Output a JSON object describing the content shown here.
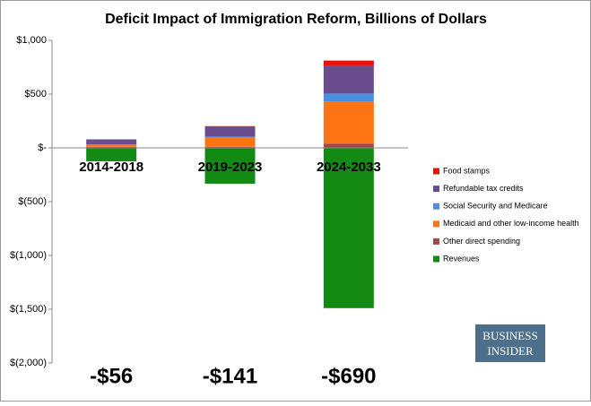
{
  "chart_data": {
    "type": "stacked-bar",
    "title": "Deficit Impact of Immigration Reform, Billions of Dollars",
    "categories": [
      "2014-2018",
      "2019-2023",
      "2024-2033"
    ],
    "series": [
      {
        "name": "Revenues",
        "color": "#138a13",
        "values": [
          -125,
          -333,
          -1490
        ]
      },
      {
        "name": "Other direct spending",
        "color": "#a34848",
        "values": [
          10,
          10,
          40
        ]
      },
      {
        "name": "Medicaid and other low-income health",
        "color": "#ff7412",
        "values": [
          20,
          90,
          390
        ]
      },
      {
        "name": "Social Security and Medicare",
        "color": "#4a8fdc",
        "values": [
          3,
          5,
          75
        ]
      },
      {
        "name": "Refundable tax credits",
        "color": "#6a4d8e",
        "values": [
          45,
          95,
          262
        ]
      },
      {
        "name": "Food stamps",
        "color": "#e8100e",
        "values": [
          2,
          2,
          45
        ]
      }
    ],
    "annotations": [
      "-$56",
      "-$141",
      "-$690"
    ],
    "logo": [
      "BUSINESS",
      "INSIDER"
    ],
    "ylim": [
      -2000,
      1000
    ],
    "yticks": [
      {
        "value": -2000,
        "label": "$(2,000)"
      },
      {
        "value": -1500,
        "label": "$(1,500)"
      },
      {
        "value": -1000,
        "label": "$(1,000)"
      },
      {
        "value": -500,
        "label": "$(500)"
      },
      {
        "value": 0,
        "label": "$-"
      },
      {
        "value": 500,
        "label": "$500"
      },
      {
        "value": 1000,
        "label": "$1,000"
      }
    ],
    "grid": false
  }
}
